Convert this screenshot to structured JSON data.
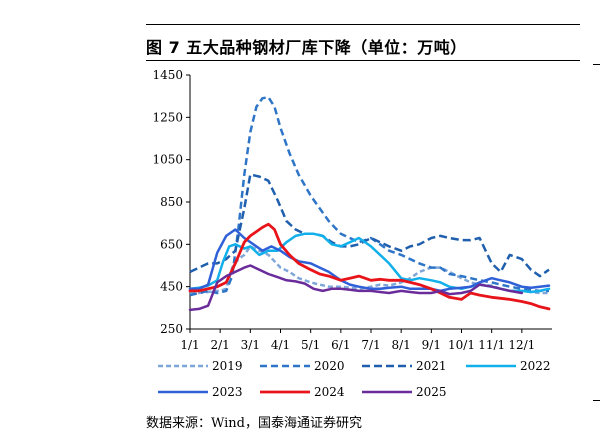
{
  "title": "图 7 五大品种钢材厂库下降（单位：万吨）",
  "source": "数据来源：Wind，国泰海通证券研究",
  "chart_data": {
    "type": "line",
    "title": "图 7 五大品种钢材厂库下降（单位：万吨）",
    "xlabel": "",
    "ylabel": "万吨",
    "ylim": [
      250,
      1450
    ],
    "yticks": [
      250,
      450,
      650,
      850,
      1050,
      1250,
      1450
    ],
    "xlim": [
      0,
      12
    ],
    "xticks": [
      {
        "label": "1/1",
        "m": 0
      },
      {
        "label": "2/1",
        "m": 1
      },
      {
        "label": "3/1",
        "m": 2
      },
      {
        "label": "4/1",
        "m": 3
      },
      {
        "label": "5/1",
        "m": 4
      },
      {
        "label": "6/1",
        "m": 5
      },
      {
        "label": "7/1",
        "m": 6
      },
      {
        "label": "8/1",
        "m": 7
      },
      {
        "label": "9/1",
        "m": 8
      },
      {
        "label": "10/1",
        "m": 9
      },
      {
        "label": "11/1",
        "m": 10
      },
      {
        "label": "12/1",
        "m": 11
      }
    ],
    "series": [
      {
        "name": "2019",
        "color": "#7ea6d8",
        "dash": "5,3",
        "width": 2.5,
        "x": [
          0,
          0.3,
          0.6,
          0.8,
          1.0,
          1.2,
          1.4,
          1.6,
          1.8,
          2.0,
          2.3,
          2.6,
          3.0,
          3.3,
          3.6,
          4.0,
          4.3,
          4.6,
          5.0,
          5.3,
          5.6,
          6.0,
          6.3,
          6.6,
          7.0,
          7.3,
          7.6,
          8.0,
          8.3,
          8.6,
          9.0,
          9.3,
          9.6,
          10.0,
          10.3,
          10.6,
          11.0,
          11.3,
          11.6,
          11.9
        ],
        "y": [
          420,
          420,
          425,
          430,
          430,
          440,
          540,
          580,
          600,
          640,
          620,
          600,
          540,
          520,
          490,
          470,
          460,
          450,
          450,
          445,
          440,
          450,
          460,
          455,
          470,
          490,
          520,
          540,
          540,
          520,
          490,
          470,
          460,
          455,
          440,
          430,
          430,
          425,
          420,
          420
        ]
      },
      {
        "name": "2020",
        "color": "#2e75c8",
        "dash": "7,4",
        "width": 2.5,
        "x": [
          0,
          0.3,
          0.6,
          0.9,
          1.2,
          1.4,
          1.6,
          1.8,
          2.0,
          2.2,
          2.4,
          2.6,
          2.8,
          3.0,
          3.3,
          3.6,
          4.0,
          4.3,
          4.6,
          5.0,
          5.3,
          5.6,
          6.0,
          6.3,
          6.6,
          7.0,
          7.3,
          7.6,
          8.0,
          8.3,
          8.6,
          9.0,
          9.3,
          9.6,
          10.0,
          10.3,
          10.6,
          11.0,
          11.3,
          11.6,
          11.9
        ],
        "y": [
          410,
          420,
          430,
          420,
          430,
          500,
          720,
          980,
          1180,
          1300,
          1340,
          1345,
          1300,
          1200,
          1080,
          980,
          880,
          820,
          760,
          700,
          680,
          660,
          680,
          650,
          620,
          600,
          580,
          560,
          540,
          540,
          510,
          500,
          490,
          480,
          470,
          460,
          450,
          440,
          435,
          430,
          430
        ]
      },
      {
        "name": "2021",
        "color": "#1f5fae",
        "dash": "8,4",
        "width": 2.5,
        "x": [
          0,
          0.3,
          0.6,
          0.9,
          1.2,
          1.5,
          1.8,
          2.0,
          2.3,
          2.6,
          2.9,
          3.2,
          3.5,
          3.8,
          4.1,
          4.4,
          4.7,
          5.0,
          5.3,
          5.6,
          6.0,
          6.3,
          6.6,
          7.0,
          7.3,
          7.6,
          8.0,
          8.3,
          8.6,
          9.0,
          9.3,
          9.6,
          10.0,
          10.3,
          10.6,
          11.0,
          11.3,
          11.6,
          11.9
        ],
        "y": [
          520,
          540,
          560,
          560,
          580,
          620,
          820,
          980,
          970,
          950,
          860,
          760,
          720,
          700,
          700,
          690,
          660,
          640,
          640,
          650,
          680,
          660,
          640,
          620,
          640,
          650,
          680,
          690,
          680,
          670,
          670,
          680,
          560,
          520,
          600,
          580,
          530,
          500,
          530
        ]
      },
      {
        "name": "2022",
        "color": "#12b0ea",
        "dash": "",
        "width": 2.5,
        "x": [
          0,
          0.3,
          0.6,
          0.9,
          1.1,
          1.3,
          1.5,
          1.8,
          2.0,
          2.3,
          2.6,
          2.9,
          3.2,
          3.5,
          3.8,
          4.1,
          4.4,
          4.7,
          5.0,
          5.3,
          5.6,
          6.0,
          6.3,
          6.6,
          7.0,
          7.3,
          7.6,
          8.0,
          8.3,
          8.6,
          9.0,
          9.3,
          9.6,
          10.0,
          10.3,
          10.6,
          11.0,
          11.3,
          11.6,
          11.9
        ],
        "y": [
          440,
          445,
          455,
          480,
          570,
          640,
          650,
          630,
          640,
          600,
          620,
          620,
          660,
          690,
          700,
          700,
          690,
          650,
          640,
          660,
          680,
          640,
          600,
          560,
          490,
          480,
          490,
          480,
          470,
          450,
          440,
          450,
          460,
          450,
          440,
          430,
          430,
          425,
          430,
          440
        ]
      },
      {
        "name": "2023",
        "color": "#3060d8",
        "dash": "",
        "width": 2.5,
        "x": [
          0,
          0.3,
          0.6,
          0.9,
          1.2,
          1.5,
          1.8,
          2.1,
          2.4,
          2.7,
          3.0,
          3.3,
          3.6,
          4.0,
          4.3,
          4.6,
          5.0,
          5.3,
          5.6,
          6.0,
          6.3,
          6.6,
          7.0,
          7.3,
          7.6,
          8.0,
          8.3,
          8.6,
          9.0,
          9.3,
          9.6,
          10.0,
          10.3,
          10.6,
          11.0,
          11.3,
          11.6,
          11.9
        ],
        "y": [
          440,
          440,
          460,
          610,
          690,
          720,
          680,
          650,
          620,
          640,
          620,
          590,
          570,
          560,
          540,
          520,
          480,
          460,
          450,
          440,
          440,
          445,
          450,
          440,
          440,
          440,
          430,
          440,
          445,
          450,
          470,
          490,
          480,
          470,
          450,
          445,
          450,
          455
        ]
      },
      {
        "name": "2024",
        "color": "#e8141a",
        "dash": "",
        "width": 2.8,
        "x": [
          0,
          0.3,
          0.6,
          0.9,
          1.2,
          1.5,
          1.8,
          2.0,
          2.2,
          2.4,
          2.6,
          2.8,
          3.0,
          3.3,
          3.6,
          4.0,
          4.3,
          4.6,
          5.0,
          5.3,
          5.6,
          6.0,
          6.3,
          6.6,
          7.0,
          7.3,
          7.6,
          8.0,
          8.3,
          8.6,
          9.0,
          9.3,
          9.6,
          10.0,
          10.3,
          10.6,
          11.0,
          11.3,
          11.6,
          11.9
        ],
        "y": [
          430,
          430,
          440,
          450,
          470,
          560,
          660,
          690,
          710,
          730,
          745,
          720,
          650,
          600,
          560,
          530,
          510,
          500,
          480,
          490,
          500,
          480,
          485,
          480,
          480,
          470,
          460,
          440,
          420,
          400,
          390,
          420,
          410,
          400,
          395,
          390,
          380,
          370,
          355,
          345
        ]
      },
      {
        "name": "2025",
        "color": "#6a2c9a",
        "dash": "",
        "width": 2.5,
        "x": [
          0,
          0.3,
          0.6,
          0.9,
          1.2,
          1.5,
          1.8,
          2.0,
          2.3,
          2.6,
          2.9,
          3.2,
          3.5,
          3.8,
          4.1,
          4.4,
          4.7,
          5.0,
          5.3,
          5.6,
          6.0,
          6.3,
          6.6,
          7.0,
          7.3,
          7.6,
          8.0,
          8.3,
          8.6,
          9.0,
          9.3,
          9.6,
          10.0,
          10.3,
          10.6,
          11.0
        ],
        "y": [
          340,
          345,
          360,
          470,
          500,
          520,
          540,
          550,
          530,
          510,
          495,
          480,
          475,
          465,
          440,
          430,
          440,
          440,
          435,
          430,
          430,
          425,
          420,
          430,
          425,
          420,
          420,
          430,
          415,
          420,
          430,
          460,
          450,
          440,
          430,
          420
        ]
      }
    ]
  }
}
